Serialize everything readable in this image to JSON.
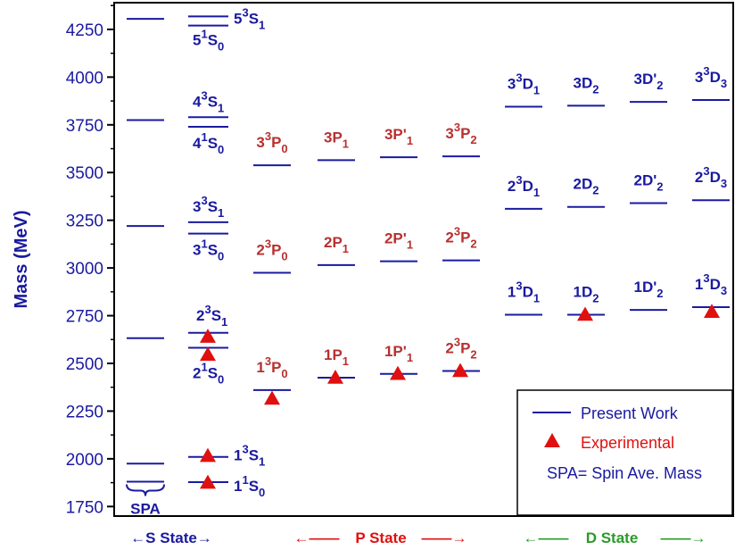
{
  "chart_data": {
    "type": "scatter",
    "ylabel": "Mass (MeV)",
    "ylim": [
      1700,
      4390
    ],
    "yticks": [
      1750,
      2000,
      2250,
      2500,
      2750,
      3000,
      3250,
      3500,
      3750,
      4000,
      4250
    ],
    "colors": {
      "axis": "#000000",
      "level": "#1a1aa0",
      "s_labels": "#1a1aa0",
      "p_labels": "#b83030",
      "d_labels": "#1a1aa0",
      "experimental": "#e01010",
      "s_state": "#1a1aa0",
      "p_state": "#e01010",
      "d_state": "#2a9a2a"
    },
    "state_labels": {
      "s": "←S State→",
      "p": "P State",
      "d": "D State",
      "arrow_left": "←——",
      "arrow_right": "——→"
    },
    "spa": {
      "label": "SPA",
      "values": [
        1975,
        2632,
        3220,
        3775,
        4305
      ]
    },
    "series": [
      {
        "name": "Present Work",
        "levels": [
          {
            "state": "1^1S_0",
            "value": 1878,
            "group": "S"
          },
          {
            "state": "1^3S_1",
            "value": 2010,
            "group": "S"
          },
          {
            "state": "2^1S_0",
            "value": 2582,
            "group": "S"
          },
          {
            "state": "2^3S_1",
            "value": 2660,
            "group": "S"
          },
          {
            "state": "3^1S_0",
            "value": 3180,
            "group": "S"
          },
          {
            "state": "3^3S_1",
            "value": 3240,
            "group": "S"
          },
          {
            "state": "4^1S_0",
            "value": 3740,
            "group": "S"
          },
          {
            "state": "4^3S_1",
            "value": 3790,
            "group": "S"
          },
          {
            "state": "5^1S_0",
            "value": 4270,
            "group": "S"
          },
          {
            "state": "5^3S_1",
            "value": 4318,
            "group": "S"
          },
          {
            "state": "1^3P_0",
            "value": 2360,
            "group": "P"
          },
          {
            "state": "1P_1",
            "value": 2425,
            "group": "P"
          },
          {
            "state": "1P'_1",
            "value": 2445,
            "group": "P"
          },
          {
            "state": "2^3P_2",
            "value": 2460,
            "group": "P"
          },
          {
            "state": "2^3P_0",
            "value": 2975,
            "group": "P"
          },
          {
            "state": "2P_1",
            "value": 3015,
            "group": "P"
          },
          {
            "state": "2P'_1",
            "value": 3035,
            "group": "P"
          },
          {
            "state": "2^3P_2",
            "value": 3040,
            "group": "P"
          },
          {
            "state": "3^3P_0",
            "value": 3538,
            "group": "P"
          },
          {
            "state": "3P_1",
            "value": 3565,
            "group": "P"
          },
          {
            "state": "3P'_1",
            "value": 3580,
            "group": "P"
          },
          {
            "state": "3^3P_2",
            "value": 3585,
            "group": "P"
          },
          {
            "state": "1^3D_1",
            "value": 2755,
            "group": "D"
          },
          {
            "state": "1D_2",
            "value": 2755,
            "group": "D"
          },
          {
            "state": "1D'_2",
            "value": 2780,
            "group": "D"
          },
          {
            "state": "1^3D_3",
            "value": 2795,
            "group": "D"
          },
          {
            "state": "2^3D_1",
            "value": 3310,
            "group": "D"
          },
          {
            "state": "2D_2",
            "value": 3320,
            "group": "D"
          },
          {
            "state": "2D'_2",
            "value": 3340,
            "group": "D"
          },
          {
            "state": "2^3D_3",
            "value": 3355,
            "group": "D"
          },
          {
            "state": "3^3D_1",
            "value": 3845,
            "group": "D"
          },
          {
            "state": "3D_2",
            "value": 3850,
            "group": "D"
          },
          {
            "state": "3D'_2",
            "value": 3870,
            "group": "D"
          },
          {
            "state": "3^3D_3",
            "value": 3880,
            "group": "D"
          }
        ]
      },
      {
        "name": "Experimental",
        "points": [
          {
            "state": "1^1S_0",
            "value": 1875
          },
          {
            "state": "1^3S_1",
            "value": 2015
          },
          {
            "state": "2^1S_0",
            "value": 2545
          },
          {
            "state": "2^3S_1",
            "value": 2640
          },
          {
            "state": "1^3P_0",
            "value": 2315
          },
          {
            "state": "1P_1",
            "value": 2425
          },
          {
            "state": "1P'_1",
            "value": 2445
          },
          {
            "state": "2^3P_2",
            "value": 2460
          },
          {
            "state": "1D_2",
            "value": 2755
          },
          {
            "state": "1^3D_3",
            "value": 2770
          }
        ]
      }
    ],
    "legend": {
      "position": "bottom-right",
      "items": [
        "Present Work",
        "Experimental",
        "SPA= Spin Ave. Mass"
      ]
    }
  }
}
